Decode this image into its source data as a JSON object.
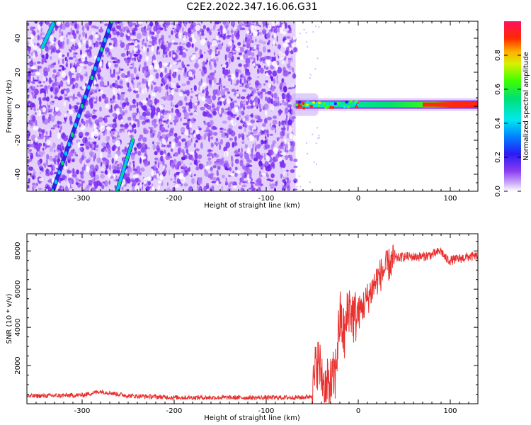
{
  "title": "C2E2.2022.347.16.06.G31",
  "colors": {
    "snr_line": "#e8312f",
    "spectrogram_background": "#8a3cf0"
  },
  "chart_data": [
    {
      "type": "heatmap",
      "title": "C2E2.2022.347.16.06.G31",
      "xlabel": "Height of straight line (km)",
      "ylabel": "Frequency (Hz)",
      "xlim": [
        -360,
        130
      ],
      "ylim": [
        -50,
        50
      ],
      "x_ticks": [
        -300,
        -200,
        -100,
        0,
        100
      ],
      "y_ticks": [
        40,
        20,
        0,
        -20,
        -40
      ],
      "colorbar": {
        "label": "Normalized spectral amplitude",
        "ticks": [
          "0.0",
          "0.2",
          "0.4",
          "0.6",
          "0.8"
        ],
        "range": [
          0,
          1
        ]
      },
      "noise_region_x": [
        -360,
        -68
      ],
      "signal_band": {
        "x_range": [
          -68,
          130
        ],
        "frequency_hz": 1,
        "high_amplitude_x": [
          70,
          130
        ]
      },
      "diagonal_tracks": [
        {
          "x": [
            -332,
            -268
          ],
          "y": [
            -50,
            50
          ]
        },
        {
          "x": [
            -262,
            -245
          ],
          "y": [
            -50,
            -20
          ]
        },
        {
          "x": [
            -343,
            -330
          ],
          "y": [
            35,
            50
          ]
        }
      ]
    },
    {
      "type": "line",
      "title": "",
      "xlabel": "Height of straight line (km)",
      "ylabel": "SNR (10 * v/v)",
      "xlim": [
        -360,
        130
      ],
      "ylim": [
        0,
        8900
      ],
      "x_ticks": [
        -300,
        -200,
        -100,
        0,
        100
      ],
      "y_ticks": [
        2000,
        4000,
        6000,
        8000
      ],
      "series": [
        {
          "x": [
            -360,
            -300,
            -280,
            -250,
            -200,
            -150,
            -100,
            -60,
            -50,
            -45,
            -40,
            -35,
            -30,
            -25,
            -20,
            -15,
            -10,
            -5,
            0,
            10,
            20,
            30,
            40,
            50,
            60,
            70,
            80,
            90,
            95,
            100,
            110,
            120,
            130
          ],
          "values": [
            400,
            450,
            650,
            420,
            330,
            320,
            320,
            330,
            400,
            2300,
            1600,
            800,
            1000,
            1500,
            4600,
            3500,
            5200,
            4500,
            4700,
            5500,
            6500,
            7100,
            7600,
            7700,
            7700,
            7700,
            7800,
            8000,
            7600,
            7500,
            7600,
            7700,
            7700
          ]
        }
      ]
    }
  ]
}
